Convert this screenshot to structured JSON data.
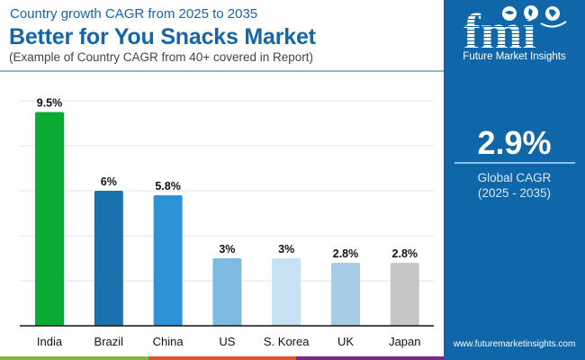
{
  "header": {
    "subtitle_top": "Country growth CAGR from 2025 to 2035",
    "title": "Better for You Snacks Market",
    "note": "(Example of Country CAGR from 40+ covered in Report)"
  },
  "panel": {
    "logo_letters": "fmi",
    "logo_text": "Future Market Insights",
    "global_value": "2.9%",
    "global_label": "Global CAGR",
    "global_period": "(2025 - 2035)",
    "url": "www.futuremarketinsights.com",
    "color": "#0f67a9"
  },
  "strip_colors": [
    "#7cb83f",
    "#e2562a",
    "#7b2a86"
  ],
  "chart_data": {
    "type": "bar",
    "title": "Better for You Snacks Market",
    "xlabel": "",
    "ylabel": "",
    "ylim": [
      0,
      10
    ],
    "grid": true,
    "gridlines": [
      2,
      4,
      6,
      8,
      10
    ],
    "categories": [
      "India",
      "Brazil",
      "China",
      "US",
      "S. Korea",
      "UK",
      "Japan"
    ],
    "values": [
      9.5,
      6,
      5.8,
      3,
      3,
      2.8,
      2.8
    ],
    "labels": [
      "9.5%",
      "6%",
      "5.8%",
      "3%",
      "3%",
      "2.8%",
      "2.8%"
    ],
    "colors": [
      "#0aab35",
      "#1a72ad",
      "#2e93d6",
      "#7dbbe2",
      "#c5e1f3",
      "#a7cce6",
      "#c6c6c6"
    ]
  }
}
